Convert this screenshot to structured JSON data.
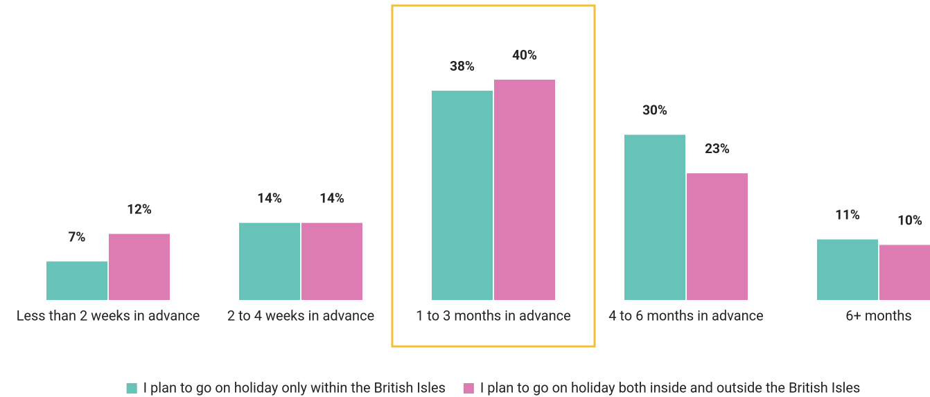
{
  "chart_data": {
    "type": "bar",
    "categories": [
      "Less than 2 weeks in advance",
      "2 to 4 weeks in advance",
      "1 to 3 months in advance",
      "4 to 6 months in advance",
      "6+ months"
    ],
    "series": [
      {
        "name": "I plan to go on holiday only within the British Isles",
        "color": "#67c2b8",
        "values": [
          7,
          14,
          38,
          30,
          11
        ],
        "value_labels": [
          "7%",
          "14%",
          "38%",
          "30%",
          "11%"
        ]
      },
      {
        "name": "I plan to go on holiday both inside and outside the British Isles",
        "color": "#dd7cb2",
        "values": [
          12,
          14,
          40,
          23,
          10
        ],
        "value_labels": [
          "12%",
          "14%",
          "40%",
          "23%",
          "10%"
        ]
      }
    ],
    "highlight": 2,
    "highlight_color": "#f2c037",
    "legend": "bottom"
  }
}
